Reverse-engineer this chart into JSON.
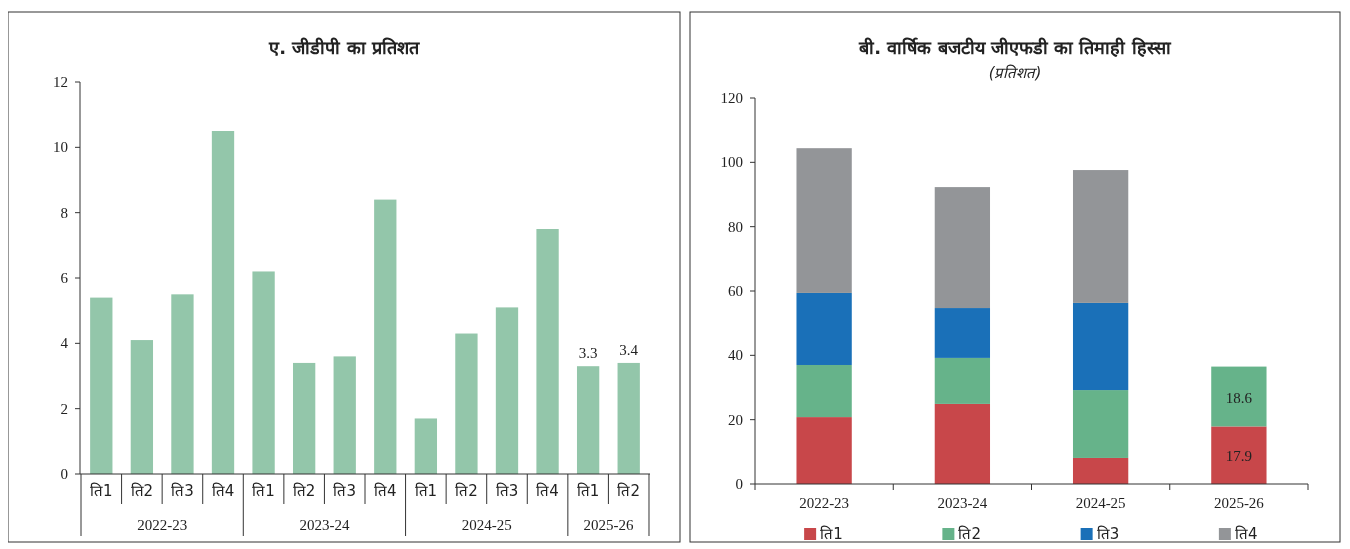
{
  "chart_data": [
    {
      "type": "bar",
      "title": "ए. जीडीपी का प्रतिशत",
      "categories": [
        "ति1",
        "ति2",
        "ति3",
        "ति4",
        "ति1",
        "ति2",
        "ति3",
        "ति4",
        "ति1",
        "ति2",
        "ति3",
        "ति4",
        "ति1",
        "ति2"
      ],
      "values": [
        5.4,
        4.1,
        5.5,
        10.5,
        6.2,
        3.4,
        3.6,
        8.4,
        1.7,
        4.3,
        5.1,
        7.5,
        3.3,
        3.4
      ],
      "value_labels": [
        null,
        null,
        null,
        null,
        null,
        null,
        null,
        null,
        null,
        null,
        null,
        null,
        "3.3",
        "3.4"
      ],
      "color": "#93c6aa",
      "ylim": [
        0,
        12
      ],
      "yticks": [
        0,
        2,
        4,
        6,
        8,
        10,
        12
      ],
      "grid": false,
      "legend": false,
      "annotations": [
        "2022-23",
        "2023-24",
        "2024-25",
        "2025-26"
      ]
    },
    {
      "type": "bar",
      "title": "बी. वार्षिक बजटीय जीएफडी का तिमाही हिस्सा",
      "subtitle": "(प्रतिशत)",
      "categories": [
        "2022-23",
        "2023-24",
        "2024-25",
        "2025-26"
      ],
      "stacked": true,
      "series": [
        {
          "name": "ति1",
          "color": "#c8474a",
          "values": [
            20.8,
            24.9,
            8.1,
            17.9
          ],
          "value_labels": [
            null,
            null,
            null,
            "17.9"
          ]
        },
        {
          "name": "ति2",
          "color": "#66b38a",
          "values": [
            16.2,
            14.3,
            21.1,
            18.6
          ],
          "value_labels": [
            null,
            null,
            null,
            "18.6"
          ]
        },
        {
          "name": "ति3",
          "color": "#1a70b8",
          "values": [
            22.4,
            15.5,
            27.1,
            null
          ]
        },
        {
          "name": "ति4",
          "color": "#939598",
          "values": [
            45,
            37.6,
            41.3,
            null
          ]
        }
      ],
      "ylim": [
        0,
        120
      ],
      "yticks": [
        0,
        20,
        40,
        60,
        80,
        100,
        120
      ],
      "grid": false,
      "legend": "bottom"
    }
  ]
}
